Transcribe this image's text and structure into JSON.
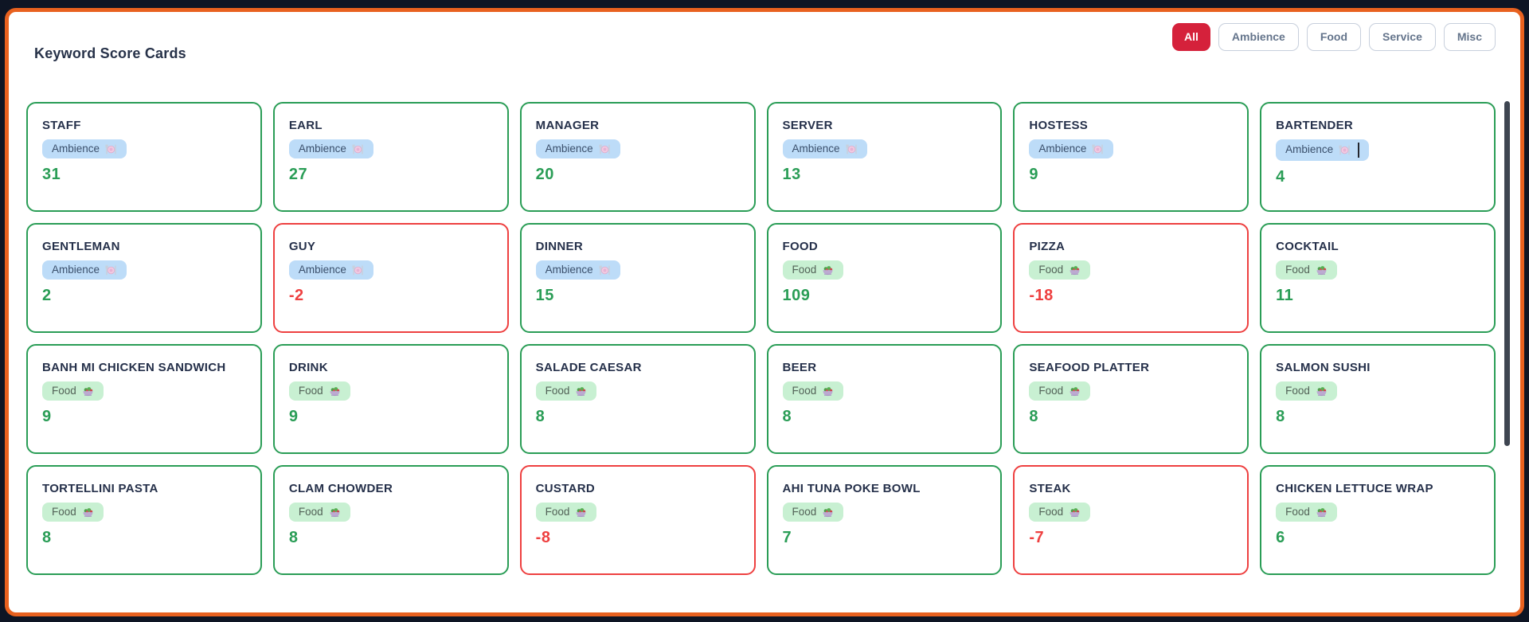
{
  "page": {
    "title": "Keyword Score Cards"
  },
  "filters": [
    {
      "label": "All",
      "active": true
    },
    {
      "label": "Ambience",
      "active": false
    },
    {
      "label": "Food",
      "active": false
    },
    {
      "label": "Service",
      "active": false
    },
    {
      "label": "Misc",
      "active": false
    }
  ],
  "colors": {
    "positive": "#2a9d56",
    "negative": "#ee4040",
    "active_filter": "#d5213b",
    "frame_orange": "#e8611f",
    "frame_dark": "#0e1524",
    "title_text": "#25304a"
  },
  "categories": {
    "ambience": {
      "label": "Ambience",
      "icon": "fork-knife-plate-icon",
      "bg": "#bddcf8",
      "text": "#3a4f6b"
    },
    "food": {
      "label": "Food",
      "icon": "salad-bowl-icon",
      "bg": "#c8f0d2",
      "text": "#526257"
    }
  },
  "cards": [
    {
      "title": "STAFF",
      "category": "ambience",
      "score": 31
    },
    {
      "title": "EARL",
      "category": "ambience",
      "score": 27
    },
    {
      "title": "MANAGER",
      "category": "ambience",
      "score": 20
    },
    {
      "title": "SERVER",
      "category": "ambience",
      "score": 13
    },
    {
      "title": "HOSTESS",
      "category": "ambience",
      "score": 9
    },
    {
      "title": "BARTENDER",
      "category": "ambience",
      "score": 4,
      "caret": true
    },
    {
      "title": "GENTLEMAN",
      "category": "ambience",
      "score": 2
    },
    {
      "title": "GUY",
      "category": "ambience",
      "score": -2
    },
    {
      "title": "DINNER",
      "category": "ambience",
      "score": 15
    },
    {
      "title": "FOOD",
      "category": "food",
      "score": 109
    },
    {
      "title": "PIZZA",
      "category": "food",
      "score": -18
    },
    {
      "title": "COCKTAIL",
      "category": "food",
      "score": 11
    },
    {
      "title": "BANH MI CHICKEN SANDWICH",
      "category": "food",
      "score": 9
    },
    {
      "title": "DRINK",
      "category": "food",
      "score": 9
    },
    {
      "title": "SALADE CAESAR",
      "category": "food",
      "score": 8
    },
    {
      "title": "BEER",
      "category": "food",
      "score": 8
    },
    {
      "title": "SEAFOOD PLATTER",
      "category": "food",
      "score": 8
    },
    {
      "title": "SALMON SUSHI",
      "category": "food",
      "score": 8
    },
    {
      "title": "TORTELLINI PASTA",
      "category": "food",
      "score": 8
    },
    {
      "title": "CLAM CHOWDER",
      "category": "food",
      "score": 8
    },
    {
      "title": "CUSTARD",
      "category": "food",
      "score": -8
    },
    {
      "title": "AHI TUNA POKE BOWL",
      "category": "food",
      "score": 7
    },
    {
      "title": "STEAK",
      "category": "food",
      "score": -7
    },
    {
      "title": "CHICKEN LETTUCE WRAP",
      "category": "food",
      "score": 6
    }
  ]
}
